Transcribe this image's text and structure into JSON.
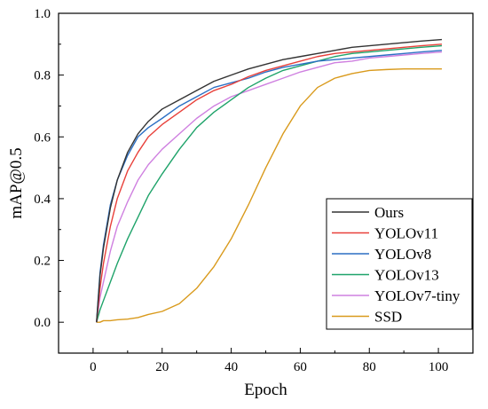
{
  "chart_data": {
    "type": "line",
    "title": "",
    "xlabel": "Epoch",
    "ylabel": "mAP@0.5",
    "xlim": [
      -10,
      110
    ],
    "ylim": [
      -0.1,
      1.0
    ],
    "xticks": [
      0,
      20,
      40,
      60,
      80,
      100
    ],
    "yticks": [
      0.0,
      0.2,
      0.4,
      0.6,
      0.8,
      1.0
    ],
    "xtick_labels": [
      "0",
      "20",
      "40",
      "60",
      "80",
      "100"
    ],
    "ytick_labels": [
      "0.0",
      "0.2",
      "0.4",
      "0.6",
      "0.8",
      "1.0"
    ],
    "grid": false,
    "legend_position": "bottom-right",
    "x": [
      1,
      2,
      3,
      5,
      7,
      10,
      13,
      16,
      20,
      25,
      30,
      35,
      40,
      45,
      50,
      55,
      60,
      65,
      70,
      75,
      80,
      85,
      90,
      95,
      101
    ],
    "series": [
      {
        "name": "Ours",
        "color": "#333333",
        "values": [
          0.0,
          0.15,
          0.24,
          0.37,
          0.46,
          0.55,
          0.61,
          0.65,
          0.69,
          0.72,
          0.75,
          0.78,
          0.8,
          0.82,
          0.835,
          0.85,
          0.86,
          0.87,
          0.88,
          0.89,
          0.895,
          0.9,
          0.905,
          0.91,
          0.915
        ]
      },
      {
        "name": "YOLOv11",
        "color": "#e8403a",
        "values": [
          0.0,
          0.11,
          0.19,
          0.31,
          0.4,
          0.49,
          0.55,
          0.6,
          0.64,
          0.68,
          0.72,
          0.75,
          0.77,
          0.795,
          0.815,
          0.83,
          0.845,
          0.86,
          0.87,
          0.875,
          0.88,
          0.885,
          0.89,
          0.895,
          0.9
        ]
      },
      {
        "name": "YOLOv8",
        "color": "#2b6fc4",
        "values": [
          0.0,
          0.16,
          0.25,
          0.38,
          0.46,
          0.54,
          0.6,
          0.63,
          0.66,
          0.7,
          0.73,
          0.76,
          0.775,
          0.79,
          0.81,
          0.825,
          0.835,
          0.845,
          0.85,
          0.855,
          0.86,
          0.865,
          0.87,
          0.875,
          0.88
        ]
      },
      {
        "name": "YOLOv13",
        "color": "#1fa36a",
        "values": [
          0.0,
          0.04,
          0.07,
          0.13,
          0.19,
          0.27,
          0.34,
          0.41,
          0.48,
          0.56,
          0.63,
          0.68,
          0.72,
          0.76,
          0.79,
          0.815,
          0.83,
          0.845,
          0.86,
          0.87,
          0.875,
          0.88,
          0.885,
          0.89,
          0.895
        ]
      },
      {
        "name": "YOLOv7-tiny",
        "color": "#cf80e0",
        "values": [
          0.0,
          0.08,
          0.13,
          0.23,
          0.31,
          0.39,
          0.46,
          0.51,
          0.56,
          0.61,
          0.66,
          0.7,
          0.73,
          0.75,
          0.77,
          0.79,
          0.81,
          0.825,
          0.84,
          0.845,
          0.855,
          0.86,
          0.865,
          0.87,
          0.875
        ]
      },
      {
        "name": "SSD",
        "color": "#d99a1c",
        "values": [
          0.0,
          0.0,
          0.005,
          0.005,
          0.008,
          0.01,
          0.015,
          0.025,
          0.035,
          0.06,
          0.11,
          0.18,
          0.27,
          0.38,
          0.5,
          0.61,
          0.7,
          0.76,
          0.79,
          0.805,
          0.815,
          0.818,
          0.82,
          0.82,
          0.82
        ]
      }
    ]
  }
}
